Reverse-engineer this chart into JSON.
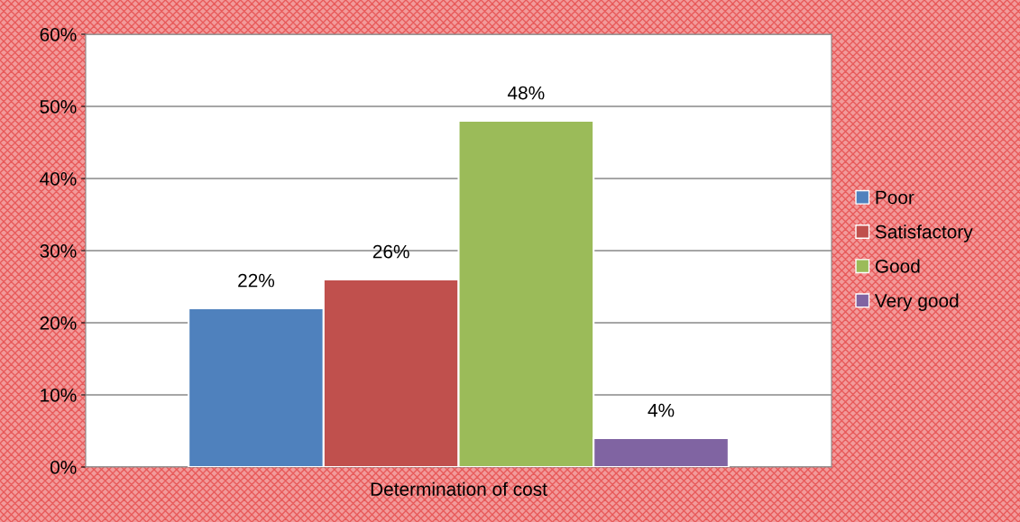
{
  "chart_data": {
    "type": "bar",
    "categories": [
      "Determination of cost"
    ],
    "series": [
      {
        "name": "Poor",
        "color": "#4f81bd",
        "values": [
          22
        ],
        "value_labels": [
          "22%"
        ]
      },
      {
        "name": "Satisfactory",
        "color": "#c0504d",
        "values": [
          26
        ],
        "value_labels": [
          "26%"
        ]
      },
      {
        "name": "Good",
        "color": "#9bbb59",
        "values": [
          48
        ],
        "value_labels": [
          "48%"
        ]
      },
      {
        "name": "Very good",
        "color": "#8064a2",
        "values": [
          4
        ],
        "value_labels": [
          "4%"
        ]
      }
    ],
    "ylim": [
      0,
      60
    ],
    "yticks": [
      {
        "value": 0,
        "label": "0%"
      },
      {
        "value": 10,
        "label": "10%"
      },
      {
        "value": 20,
        "label": "20%"
      },
      {
        "value": 30,
        "label": "30%"
      },
      {
        "value": 40,
        "label": "40%"
      },
      {
        "value": 50,
        "label": "50%"
      },
      {
        "value": 60,
        "label": "60%"
      }
    ],
    "grid": "y",
    "legend": "right"
  }
}
